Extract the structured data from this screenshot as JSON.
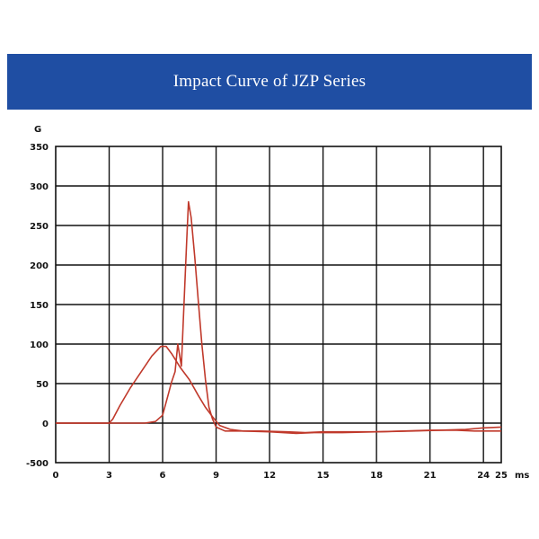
{
  "banner": {
    "title": "Impact Curve of JZP Series"
  },
  "chart_data": {
    "type": "line",
    "ylabel": "G",
    "xlabel": "ms",
    "xlim": [
      0,
      25
    ],
    "ylim": [
      -500,
      350
    ],
    "x_ticks": [
      0,
      3,
      6,
      9,
      12,
      15,
      18,
      21,
      24,
      25
    ],
    "y_ticks": [
      -500,
      0,
      50,
      100,
      150,
      200,
      250,
      300,
      350
    ],
    "y_tick_labels": [
      "-500",
      "0",
      "50",
      "100",
      "150",
      "200",
      "250",
      "300",
      "350"
    ],
    "grid": true,
    "line_color": "#c0392b",
    "series": [
      {
        "points": [
          [
            0,
            0
          ],
          [
            3,
            0
          ],
          [
            3.2,
            5
          ],
          [
            3.6,
            22
          ],
          [
            4.2,
            45
          ],
          [
            4.8,
            65
          ],
          [
            5.4,
            85
          ],
          [
            5.9,
            97
          ],
          [
            6.2,
            97
          ],
          [
            6.5,
            88
          ],
          [
            7.0,
            70
          ],
          [
            7.5,
            55
          ],
          [
            8.0,
            35
          ],
          [
            8.4,
            20
          ],
          [
            8.8,
            8
          ],
          [
            9.2,
            -3
          ],
          [
            9.8,
            -8
          ],
          [
            10.5,
            -10
          ],
          [
            11.5,
            -10
          ],
          [
            13.0,
            -11
          ],
          [
            14.0,
            -12
          ],
          [
            15.0,
            -11
          ],
          [
            16.5,
            -11
          ],
          [
            18.0,
            -11
          ],
          [
            20.0,
            -10
          ],
          [
            21.5,
            -9
          ],
          [
            23.0,
            -8
          ],
          [
            24.0,
            -6
          ],
          [
            25.0,
            -5
          ]
        ]
      },
      {
        "points": [
          [
            0,
            0
          ],
          [
            5.0,
            0
          ],
          [
            5.6,
            2
          ],
          [
            6.0,
            10
          ],
          [
            6.3,
            35
          ],
          [
            6.5,
            52
          ],
          [
            6.7,
            65
          ],
          [
            6.85,
            100
          ],
          [
            7.05,
            72
          ],
          [
            7.2,
            150
          ],
          [
            7.35,
            230
          ],
          [
            7.45,
            280
          ],
          [
            7.6,
            260
          ],
          [
            7.8,
            210
          ],
          [
            8.0,
            155
          ],
          [
            8.2,
            100
          ],
          [
            8.4,
            55
          ],
          [
            8.6,
            20
          ],
          [
            8.8,
            5
          ],
          [
            9.0,
            -5
          ],
          [
            9.5,
            -10
          ],
          [
            10.5,
            -10
          ],
          [
            12.0,
            -11
          ],
          [
            13.5,
            -13
          ],
          [
            14.5,
            -12
          ],
          [
            16.0,
            -12
          ],
          [
            18.0,
            -11
          ],
          [
            19.5,
            -10
          ],
          [
            21.0,
            -9
          ],
          [
            22.5,
            -9
          ],
          [
            23.5,
            -10
          ],
          [
            24.5,
            -10
          ],
          [
            25.0,
            -10
          ]
        ]
      }
    ]
  }
}
